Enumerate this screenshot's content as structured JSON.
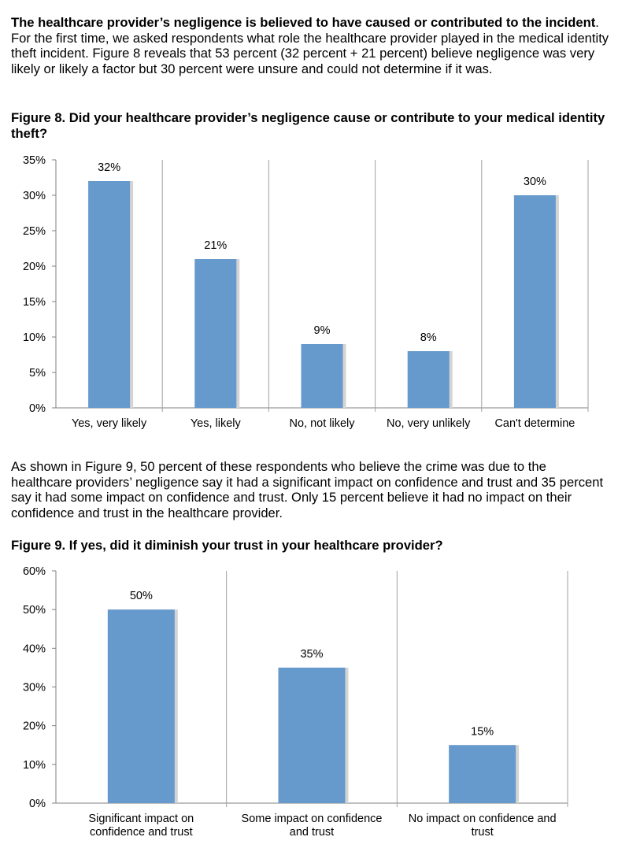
{
  "intro": {
    "bold_lead": "The healthcare provider’s negligence is believed to have caused or contributed to the incident",
    "body": ". For the first time, we asked respondents what role the healthcare provider played in the medical identity theft incident. Figure 8 reveals that 53 percent (32 percent + 21 percent) believe negligence was very likely or likely a factor but 30 percent were unsure and could not determine if it was."
  },
  "middle": {
    "body": "As shown in Figure 9, 50 percent of these respondents who believe the crime was due to the healthcare providers’ negligence say it had a significant impact on confidence and trust and 35 percent say it had some impact on confidence and trust. Only 15 percent believe it had no impact on their confidence and trust in the healthcare provider."
  },
  "colors": {
    "bar": "#6699CC",
    "bar_shadow": "#D4D4D4",
    "grid": "#A0A0A0",
    "axis": "#808080"
  },
  "chart_data": [
    {
      "type": "bar",
      "title": "Figure 8. Did your healthcare provider’s negligence cause or contribute to your medical identity theft?",
      "categories": [
        "Yes, very likely",
        "Yes, likely",
        "No, not likely",
        "No, very unlikely",
        "Can't determine"
      ],
      "values": [
        32,
        21,
        9,
        8,
        30
      ],
      "data_labels": [
        "32%",
        "21%",
        "9%",
        "8%",
        "30%"
      ],
      "ylim": [
        0,
        35
      ],
      "yticks": [
        0,
        5,
        10,
        15,
        20,
        25,
        30,
        35
      ],
      "ytick_labels": [
        "0%",
        "5%",
        "10%",
        "15%",
        "20%",
        "25%",
        "30%",
        "35%"
      ],
      "xlabel": "",
      "ylabel": ""
    },
    {
      "type": "bar",
      "title": "Figure 9. If yes, did it diminish your trust in your healthcare provider?",
      "categories": [
        "Significant impact on confidence and trust",
        "Some impact on confidence and trust",
        "No impact on confidence and trust"
      ],
      "category_lines": [
        [
          "Significant impact on",
          "confidence and trust"
        ],
        [
          "Some impact on confidence",
          "and trust"
        ],
        [
          "No impact on confidence and",
          "trust"
        ]
      ],
      "values": [
        50,
        35,
        15
      ],
      "data_labels": [
        "50%",
        "35%",
        "15%"
      ],
      "ylim": [
        0,
        60
      ],
      "yticks": [
        0,
        10,
        20,
        30,
        40,
        50,
        60
      ],
      "ytick_labels": [
        "0%",
        "10%",
        "20%",
        "30%",
        "40%",
        "50%",
        "60%"
      ],
      "xlabel": "",
      "ylabel": ""
    }
  ]
}
